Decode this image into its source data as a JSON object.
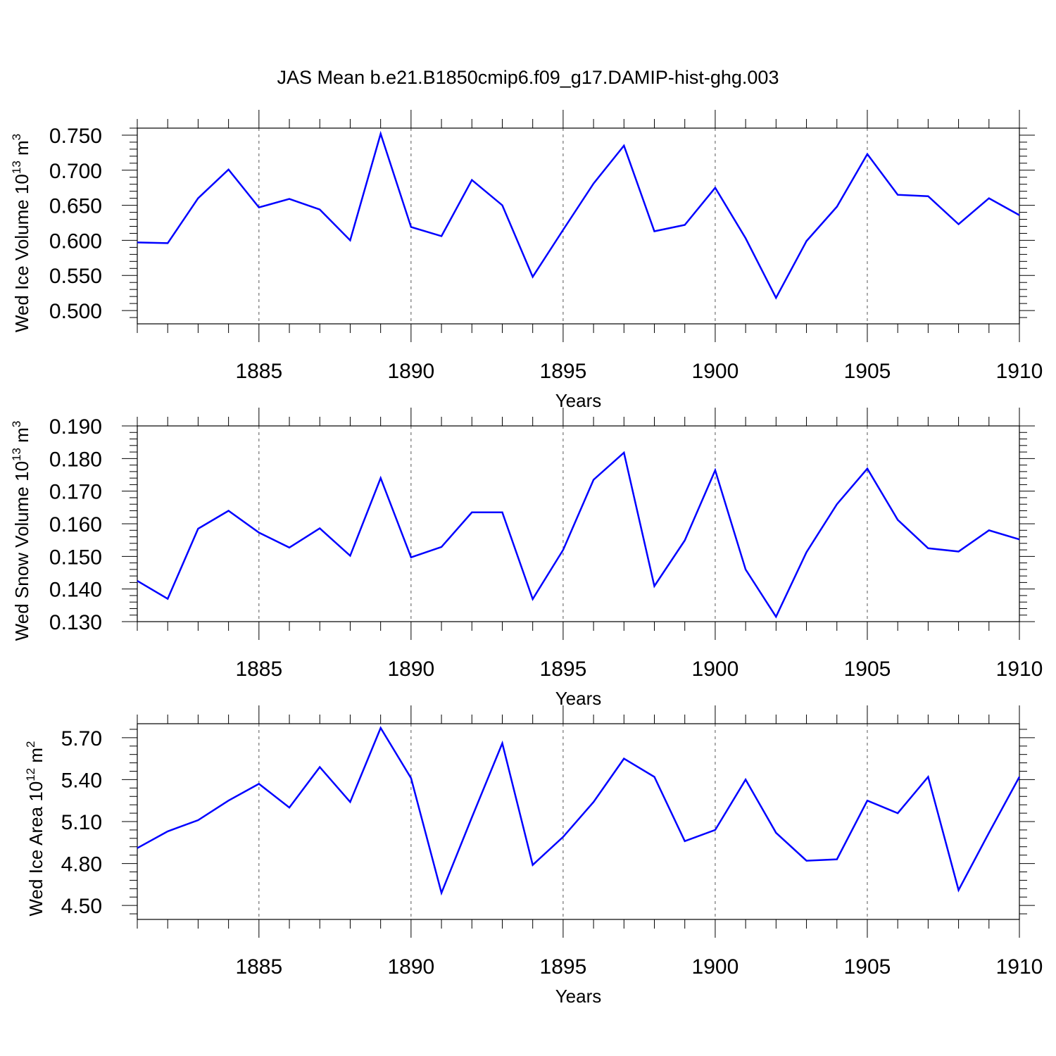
{
  "figure": {
    "title": "JAS Mean b.e21.B1850cmip6.f09_g17.DAMIP-hist-ghg.003"
  },
  "style": {
    "line_color": "#0000ff",
    "axis_color": "#000000",
    "grid_color": "#555555"
  },
  "chart_data": [
    {
      "type": "line",
      "ylabel": "Wed Ice Volume 10^13 m^3",
      "ylabel_parts": {
        "base": "Wed Ice Volume 10",
        "exp1": "13",
        "mid": " m",
        "exp2": "3"
      },
      "xlabel": "Years",
      "x": [
        1881,
        1882,
        1883,
        1884,
        1885,
        1886,
        1887,
        1888,
        1889,
        1890,
        1891,
        1892,
        1893,
        1894,
        1895,
        1896,
        1897,
        1898,
        1899,
        1900,
        1901,
        1902,
        1903,
        1904,
        1905,
        1906,
        1907,
        1908,
        1909,
        1910
      ],
      "values": [
        0.597,
        0.596,
        0.66,
        0.701,
        0.647,
        0.659,
        0.644,
        0.6,
        0.752,
        0.619,
        0.606,
        0.686,
        0.65,
        0.548,
        0.615,
        0.681,
        0.735,
        0.613,
        0.622,
        0.675,
        0.603,
        0.518,
        0.599,
        0.648,
        0.723,
        0.665,
        0.663,
        0.623,
        0.66,
        0.636
      ],
      "xlim": [
        1881,
        1910
      ],
      "ylim": [
        0.481,
        0.76
      ],
      "yticks": [
        0.5,
        0.55,
        0.6,
        0.65,
        0.7,
        0.75
      ],
      "ytick_labels": [
        "0.500",
        "0.550",
        "0.600",
        "0.650",
        "0.700",
        "0.750"
      ],
      "xticks": [
        1885,
        1890,
        1895,
        1900,
        1905,
        1910
      ],
      "xtick_labels": [
        "1885",
        "1890",
        "1895",
        "1900",
        "1905",
        "1910"
      ],
      "vgrid": [
        1885,
        1890,
        1895,
        1900,
        1905
      ],
      "grid": "vertical dashed at major x ticks"
    },
    {
      "type": "line",
      "ylabel": "Wed Snow Volume 10^13 m^3",
      "ylabel_parts": {
        "base": "Wed Snow Volume 10",
        "exp1": "13",
        "mid": " m",
        "exp2": "3"
      },
      "xlabel": "Years",
      "x": [
        1881,
        1882,
        1883,
        1884,
        1885,
        1886,
        1887,
        1888,
        1889,
        1890,
        1891,
        1892,
        1893,
        1894,
        1895,
        1896,
        1897,
        1898,
        1899,
        1900,
        1901,
        1902,
        1903,
        1904,
        1905,
        1906,
        1907,
        1908,
        1909,
        1910
      ],
      "values": [
        0.1425,
        0.137,
        0.1585,
        0.164,
        0.1573,
        0.1527,
        0.1586,
        0.1502,
        0.174,
        0.1497,
        0.1529,
        0.1635,
        0.1635,
        0.1369,
        0.152,
        0.1735,
        0.1818,
        0.1409,
        0.1549,
        0.1764,
        0.146,
        0.1315,
        0.1513,
        0.166,
        0.1769,
        0.1612,
        0.1525,
        0.1515,
        0.158,
        0.1552
      ],
      "xlim": [
        1881,
        1910
      ],
      "ylim": [
        0.13,
        0.19
      ],
      "yticks": [
        0.13,
        0.14,
        0.15,
        0.16,
        0.17,
        0.18,
        0.19
      ],
      "ytick_labels": [
        "0.130",
        "0.140",
        "0.150",
        "0.160",
        "0.170",
        "0.180",
        "0.190"
      ],
      "xticks": [
        1885,
        1890,
        1895,
        1900,
        1905,
        1910
      ],
      "xtick_labels": [
        "1885",
        "1890",
        "1895",
        "1900",
        "1905",
        "1910"
      ],
      "vgrid": [
        1885,
        1890,
        1895,
        1900,
        1905
      ],
      "grid": "vertical dashed at major x ticks"
    },
    {
      "type": "line",
      "ylabel": "Wed Ice Area 10^12 m^2",
      "ylabel_parts": {
        "base": "Wed Ice Area 10",
        "exp1": "12",
        "mid": " m",
        "exp2": "2"
      },
      "xlabel": "Years",
      "x": [
        1881,
        1882,
        1883,
        1884,
        1885,
        1886,
        1887,
        1888,
        1889,
        1890,
        1891,
        1892,
        1893,
        1894,
        1895,
        1896,
        1897,
        1898,
        1899,
        1900,
        1901,
        1902,
        1903,
        1904,
        1905,
        1906,
        1907,
        1908,
        1909,
        1910
      ],
      "values": [
        4.91,
        5.03,
        5.11,
        5.25,
        5.37,
        5.2,
        5.49,
        5.24,
        5.77,
        5.41,
        4.59,
        5.13,
        5.66,
        4.79,
        4.99,
        5.24,
        5.55,
        5.42,
        4.96,
        5.04,
        5.4,
        5.02,
        4.82,
        4.83,
        5.25,
        5.16,
        5.42,
        4.61,
        5.02,
        5.42
      ],
      "xlim": [
        1881,
        1910
      ],
      "ylim": [
        4.4,
        5.8
      ],
      "yticks": [
        4.5,
        4.8,
        5.1,
        5.4,
        5.7
      ],
      "ytick_labels": [
        "4.50",
        "4.80",
        "5.10",
        "5.40",
        "5.70"
      ],
      "xticks": [
        1885,
        1890,
        1895,
        1900,
        1905,
        1910
      ],
      "xtick_labels": [
        "1885",
        "1890",
        "1895",
        "1900",
        "1905",
        "1910"
      ],
      "vgrid": [
        1885,
        1890,
        1895,
        1900,
        1905
      ],
      "grid": "vertical dashed at major x ticks"
    }
  ]
}
